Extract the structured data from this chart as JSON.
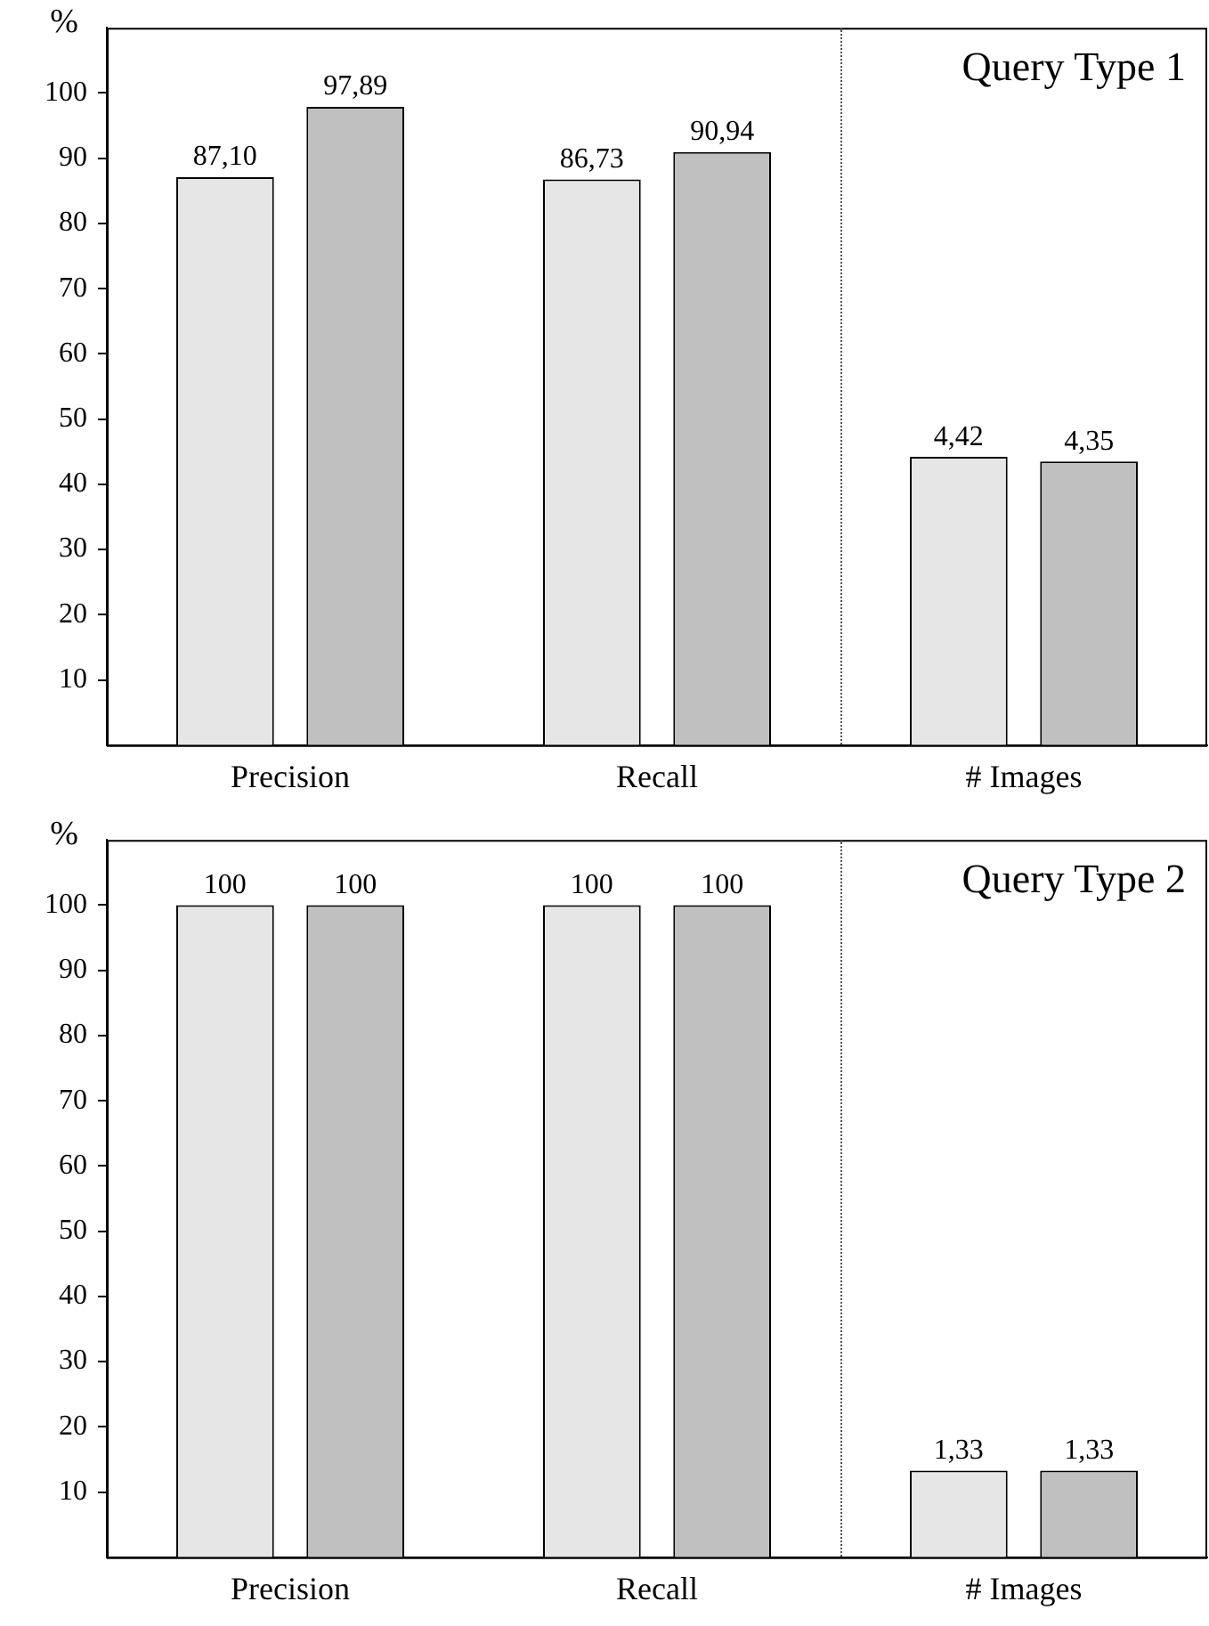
{
  "chart_data": [
    {
      "type": "bar",
      "ylabel": "%",
      "annotations": [
        "Query Type 1"
      ],
      "categories": [
        "Precision",
        "Recall",
        "# Images"
      ],
      "ylim": [
        0,
        110
      ],
      "yticks": [
        10,
        20,
        30,
        40,
        50,
        60,
        70,
        80,
        90,
        100
      ],
      "y2lim": [
        0,
        11
      ],
      "grid": false,
      "series": [
        {
          "color": "#e6e6e6",
          "values": [
            87.1,
            86.73,
            null
          ],
          "value_labels": [
            "87,10",
            "86,73",
            null
          ]
        },
        {
          "color": "#c0c0c0",
          "values": [
            97.89,
            90.94,
            null
          ],
          "value_labels": [
            "97,89",
            "90,94",
            null
          ]
        },
        {
          "color": "#e6e6e6",
          "axis": "y2",
          "values": [
            null,
            null,
            4.42
          ],
          "value_labels": [
            null,
            null,
            "4,42"
          ]
        },
        {
          "color": "#c0c0c0",
          "axis": "y2",
          "values": [
            null,
            null,
            4.35
          ],
          "value_labels": [
            null,
            null,
            "4,35"
          ]
        }
      ]
    },
    {
      "type": "bar",
      "ylabel": "%",
      "annotations": [
        "Query Type 2"
      ],
      "categories": [
        "Precision",
        "Recall",
        "# Images"
      ],
      "ylim": [
        0,
        110
      ],
      "yticks": [
        10,
        20,
        30,
        40,
        50,
        60,
        70,
        80,
        90,
        100
      ],
      "y2lim": [
        0,
        11
      ],
      "grid": false,
      "series": [
        {
          "color": "#e6e6e6",
          "values": [
            100,
            100,
            null
          ],
          "value_labels": [
            "100",
            "100",
            null
          ]
        },
        {
          "color": "#c0c0c0",
          "values": [
            100,
            100,
            null
          ],
          "value_labels": [
            "100",
            "100",
            null
          ]
        },
        {
          "color": "#e6e6e6",
          "axis": "y2",
          "values": [
            null,
            null,
            1.33
          ],
          "value_labels": [
            null,
            null,
            "1,33"
          ]
        },
        {
          "color": "#c0c0c0",
          "axis": "y2",
          "values": [
            null,
            null,
            1.33
          ],
          "value_labels": [
            null,
            null,
            "1,33"
          ]
        }
      ]
    }
  ]
}
